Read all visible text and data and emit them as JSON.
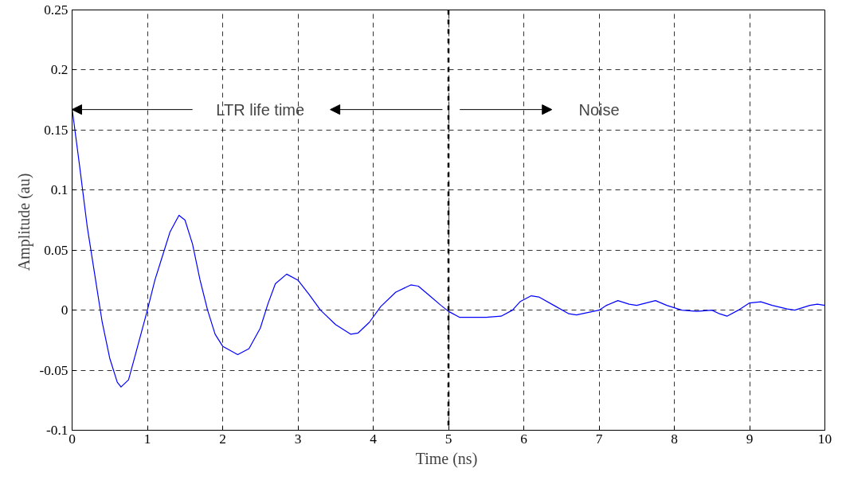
{
  "chart_data": {
    "type": "line",
    "xlabel": "Time  (ns)",
    "ylabel": "Amplitude  (au)",
    "x": [
      0,
      0.1,
      0.2,
      0.3,
      0.4,
      0.5,
      0.6,
      0.65,
      0.75,
      0.85,
      1.0,
      1.1,
      1.2,
      1.3,
      1.42,
      1.5,
      1.6,
      1.7,
      1.8,
      1.9,
      2.0,
      2.2,
      2.35,
      2.5,
      2.6,
      2.7,
      2.85,
      3.0,
      3.15,
      3.3,
      3.5,
      3.7,
      3.8,
      3.95,
      4.1,
      4.3,
      4.5,
      4.6,
      4.75,
      4.9,
      5.0,
      5.15,
      5.5,
      5.7,
      5.85,
      5.95,
      6.1,
      6.2,
      6.4,
      6.6,
      6.7,
      6.85,
      7.0,
      7.1,
      7.25,
      7.4,
      7.5,
      7.75,
      7.9,
      8.1,
      8.3,
      8.5,
      8.6,
      8.7,
      8.85,
      9.0,
      9.15,
      9.3,
      9.5,
      9.6,
      9.8,
      9.9,
      10
    ],
    "series": [
      {
        "color": "#0000ff",
        "values": [
          0.168,
          0.12,
          0.07,
          0.03,
          -0.01,
          -0.04,
          -0.06,
          -0.064,
          -0.058,
          -0.035,
          0.0,
          0.025,
          0.045,
          0.065,
          0.079,
          0.075,
          0.055,
          0.025,
          0.0,
          -0.02,
          -0.03,
          -0.037,
          -0.032,
          -0.015,
          0.005,
          0.022,
          0.03,
          0.025,
          0.013,
          0.0,
          -0.012,
          -0.02,
          -0.019,
          -0.01,
          0.003,
          0.015,
          0.021,
          0.02,
          0.012,
          0.004,
          -0.001,
          -0.006,
          -0.006,
          -0.005,
          0.0,
          0.007,
          0.012,
          0.011,
          0.004,
          -0.003,
          -0.004,
          -0.002,
          0.0,
          0.004,
          0.008,
          0.005,
          0.004,
          0.008,
          0.004,
          0.0,
          -0.001,
          0.0,
          -0.003,
          -0.005,
          0.0,
          0.006,
          0.007,
          0.004,
          0.001,
          0.0,
          0.004,
          0.005,
          0.004
        ]
      }
    ],
    "xlim": [
      0,
      10
    ],
    "ylim": [
      -0.1,
      0.25
    ],
    "xticks": [
      0,
      1,
      2,
      3,
      4,
      5,
      6,
      7,
      8,
      9,
      10
    ],
    "yticks": [
      -0.1,
      -0.05,
      0,
      0.05,
      0.1,
      0.15,
      0.2,
      0.25
    ],
    "grid": true,
    "line_style": "solid",
    "marker": "none",
    "ref_lines": [
      {
        "axis": "x",
        "value": 5,
        "color": "#000000",
        "line_style": "dashed"
      }
    ],
    "annotations": [
      "LTR life time",
      "Noise"
    ]
  }
}
